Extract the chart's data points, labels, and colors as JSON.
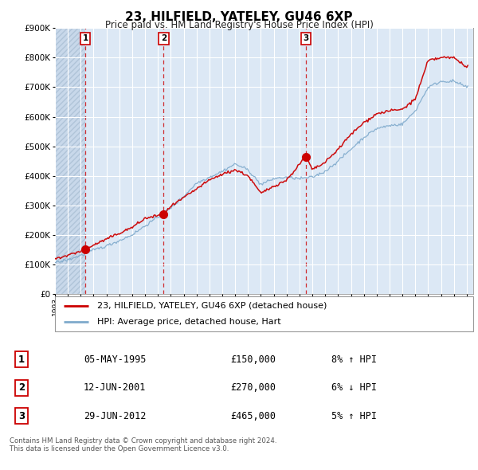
{
  "title": "23, HILFIELD, YATELEY, GU46 6XP",
  "subtitle": "Price paid vs. HM Land Registry's House Price Index (HPI)",
  "legend_line1": "23, HILFIELD, YATELEY, GU46 6XP (detached house)",
  "legend_line2": "HPI: Average price, detached house, Hart",
  "footer1": "Contains HM Land Registry data © Crown copyright and database right 2024.",
  "footer2": "This data is licensed under the Open Government Licence v3.0.",
  "transactions": [
    {
      "num": 1,
      "date": "05-MAY-1995",
      "price": "£150,000",
      "pct": "8% ↑ HPI",
      "year": 1995.35
    },
    {
      "num": 2,
      "date": "12-JUN-2001",
      "price": "£270,000",
      "pct": "6% ↓ HPI",
      "year": 2001.45
    },
    {
      "num": 3,
      "date": "29-JUN-2012",
      "price": "£465,000",
      "pct": "5% ↑ HPI",
      "year": 2012.49
    }
  ],
  "transaction_values": [
    150000,
    270000,
    465000
  ],
  "transaction_years": [
    1995.35,
    2001.45,
    2012.49
  ],
  "ylim": [
    0,
    900000
  ],
  "xlim_start": 1993,
  "xlim_end": 2025.5,
  "property_color": "#cc0000",
  "hpi_color": "#7faacc",
  "plot_bg_color": "#dce8f5",
  "hatch_color": "#c0cfe0"
}
